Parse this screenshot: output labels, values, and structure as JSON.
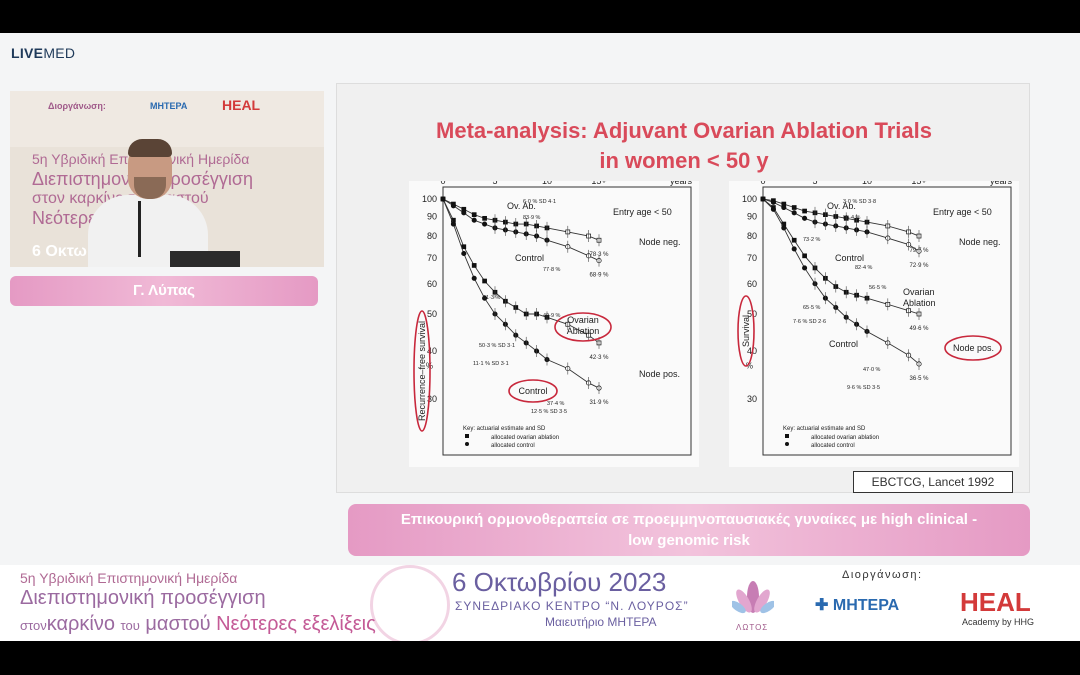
{
  "brand": {
    "bold": "LIVE",
    "light": "MED"
  },
  "video": {
    "bg_organizer": "Διοργάνωση:",
    "bg_line1": "5η Υβριδική Επιστημονική Ημερίδα",
    "bg_line2": "Διεπιστημονική προσέγγιση",
    "bg_line3": "στον καρκίνο του μαστού",
    "bg_line4": "Νεότερες εξελίξεις",
    "bg_date": "6 Οκτω",
    "bg_logo_mitera": "ΜΗΤΕΡΑ",
    "bg_logo_heal": "HEAL"
  },
  "speaker": {
    "name": "Γ. Λύπας"
  },
  "slide": {
    "title_line1": "Meta-analysis: Adjuvant Ovarian Ablation Trials",
    "title_line2": "in women < 50 y",
    "citation": "EBCTCG, Lancet 1992"
  },
  "chart_data": [
    {
      "type": "line",
      "ylabel": "Recurrence–free survival",
      "x_ticks": [
        "0",
        "5",
        "10",
        "15+",
        "years"
      ],
      "y_ticks": [
        "100",
        "90",
        "80",
        "70",
        "60",
        "50",
        "40",
        "30"
      ],
      "y_unit": "%",
      "entry_age": "Entry age < 50",
      "series": [
        {
          "name": "Ov. Ab.",
          "group": "Node neg.",
          "end_label": "78·3 %",
          "x": [
            0,
            1,
            2,
            3,
            4,
            5,
            6,
            7,
            8,
            9,
            10,
            12,
            14,
            15
          ],
          "y": [
            100,
            97,
            94,
            91,
            89,
            88,
            87,
            86,
            86,
            85,
            84,
            82,
            80,
            78
          ]
        },
        {
          "name": "Control",
          "group": "Node neg.",
          "end_label": "68·9 %",
          "x": [
            0,
            1,
            2,
            3,
            4,
            5,
            6,
            7,
            8,
            9,
            10,
            12,
            14,
            15
          ],
          "y": [
            100,
            96,
            92,
            88,
            86,
            84,
            83,
            82,
            81,
            80,
            78,
            75,
            71,
            69
          ]
        },
        {
          "name": "Ovarian Ablation",
          "group": "Node pos.",
          "end_label": "42·3 %",
          "x": [
            0,
            1,
            2,
            3,
            4,
            5,
            6,
            7,
            8,
            9,
            10,
            12,
            14,
            15
          ],
          "y": [
            100,
            88,
            75,
            67,
            61,
            57,
            54,
            52,
            50,
            50,
            49,
            47,
            44,
            42
          ]
        },
        {
          "name": "Control",
          "group": "Node pos.",
          "end_label": "31·9 %",
          "x": [
            0,
            1,
            2,
            3,
            4,
            5,
            6,
            7,
            8,
            9,
            10,
            12,
            14,
            15
          ],
          "y": [
            100,
            86,
            72,
            62,
            55,
            50,
            47,
            44,
            42,
            40,
            38,
            36,
            33,
            32
          ]
        }
      ],
      "labels": {
        "node_neg": "Node neg.",
        "node_pos": "Node pos.",
        "ov_ab": "Ov. Ab.",
        "control": "Control",
        "ovarian": "Ovarian",
        "ablation": "Ablation",
        "control_pos": "Control"
      },
      "small_values": [
        "6·0 % SD 4·1",
        "83·9 %",
        "77·8 %",
        "61·3 %",
        "49·9 %",
        "50·3 % SD 3·1",
        "11·1 % SD 3·1",
        "37·4 %",
        "12·5 % SD 3·5"
      ],
      "key": {
        "title": "Key: actuarial estimate and SD",
        "ablation": "allocated ovarian ablation",
        "control": "allocated control"
      }
    },
    {
      "type": "line",
      "ylabel": "Survival",
      "x_ticks": [
        "0",
        "5",
        "10",
        "15+",
        "years"
      ],
      "y_ticks": [
        "100",
        "90",
        "80",
        "70",
        "60",
        "50",
        "40",
        "30"
      ],
      "y_unit": "%",
      "entry_age": "Entry age < 50",
      "series": [
        {
          "name": "Ov. Ab.",
          "group": "Node neg.",
          "end_label": "79·7 %",
          "x": [
            0,
            1,
            2,
            3,
            4,
            5,
            6,
            7,
            8,
            9,
            10,
            12,
            14,
            15
          ],
          "y": [
            100,
            99,
            97,
            95,
            93,
            92,
            91,
            90,
            89,
            88,
            87,
            85,
            82,
            80
          ]
        },
        {
          "name": "Control",
          "group": "Node neg.",
          "end_label": "72·9 %",
          "x": [
            0,
            1,
            2,
            3,
            4,
            5,
            6,
            7,
            8,
            9,
            10,
            12,
            14,
            15
          ],
          "y": [
            100,
            98,
            95,
            92,
            89,
            87,
            86,
            85,
            84,
            83,
            82,
            79,
            76,
            73
          ]
        },
        {
          "name": "Ovarian Ablation",
          "group": "Node pos.",
          "end_label": "49·6 %",
          "x": [
            0,
            1,
            2,
            3,
            4,
            5,
            6,
            7,
            8,
            9,
            10,
            12,
            14,
            15
          ],
          "y": [
            100,
            95,
            86,
            78,
            71,
            66,
            62,
            59,
            57,
            56,
            55,
            53,
            51,
            50
          ]
        },
        {
          "name": "Control",
          "group": "Node pos.",
          "end_label": "36·5 %",
          "x": [
            0,
            1,
            2,
            3,
            4,
            5,
            6,
            7,
            8,
            9,
            10,
            12,
            14,
            15
          ],
          "y": [
            100,
            94,
            84,
            74,
            66,
            60,
            55,
            52,
            49,
            47,
            45,
            42,
            39,
            37
          ]
        }
      ],
      "labels": {
        "node_neg": "Node neg.",
        "node_pos": "Node pos.",
        "ov_ab": "Ov. Ab.",
        "control": "Control",
        "ovarian": "Ovarian",
        "ablation": "Ablation",
        "control_pos": "Control"
      },
      "small_values": [
        "3·0 % SD 3·8",
        "85·4 %",
        "73·2 %",
        "82·4 %",
        "56·5 %",
        "65·5 %",
        "7·6 % SD 2·6",
        "47·0 %",
        "9·6 % SD 3·5"
      ],
      "key": {
        "title": "Key: actuarial estimate and SD",
        "ablation": "allocated ovarian ablation",
        "control": "allocated control"
      }
    }
  ],
  "caption": {
    "line1": "Επικουρική ορμονοθεραπεία σε προεμμηνοπαυσιακές γυναίκες με high clinical -",
    "line2": "low genomic risk"
  },
  "footer": {
    "event_line1": "5η Υβριδική Επιστημονική Ημερίδα",
    "event_line2": "Διεπιστημονική προσέγγιση",
    "event_line3_small": "στον",
    "event_line3_a": "καρκίνο",
    "event_line3_small2": "του",
    "event_line3_b": "μαστού",
    "event_line3_c": "Νεότερες εξελίξεις",
    "date": "6 Οκτωβρίου 2023",
    "venue": "ΣΥΝΕΔΡΙΑΚΟ ΚΕΝΤΡΟ “Ν. ΛΟΥΡΟΣ”",
    "hospital": "Μαιευτήριο ΜΗΤΕΡΑ",
    "organizer_label": "Διοργάνωση:",
    "lotus_text": "ΛΩΤΟΣ",
    "mitera": "ΜΗΤΕΡΑ",
    "heal": "HEAL",
    "heal_sub": "Academy by HHG"
  },
  "colors": {
    "accent_pink": "#e59ac4",
    "title_red": "#d94a5a",
    "highlight_red": "#c8283c"
  }
}
